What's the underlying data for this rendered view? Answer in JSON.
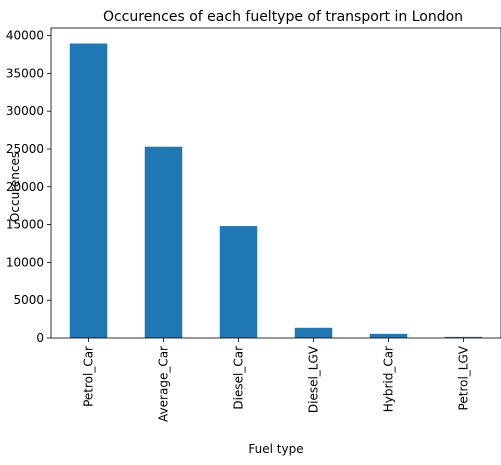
{
  "chart_data": {
    "type": "bar",
    "title": "Occurences of each fueltype of transport in London",
    "xlabel": "Fuel type",
    "ylabel": "Occurences",
    "categories": [
      "Petrol_Car",
      "Average_Car",
      "Diesel_Car",
      "Diesel_LGV",
      "Hybrid_Car",
      "Petrol_LGV"
    ],
    "values": [
      38950,
      25300,
      14800,
      1350,
      550,
      150
    ],
    "ylim": [
      0,
      41000
    ],
    "yticks": [
      0,
      5000,
      10000,
      15000,
      20000,
      25000,
      30000,
      35000,
      40000
    ],
    "bar_color": "#1f77b4",
    "grid": false,
    "legend": "none"
  }
}
